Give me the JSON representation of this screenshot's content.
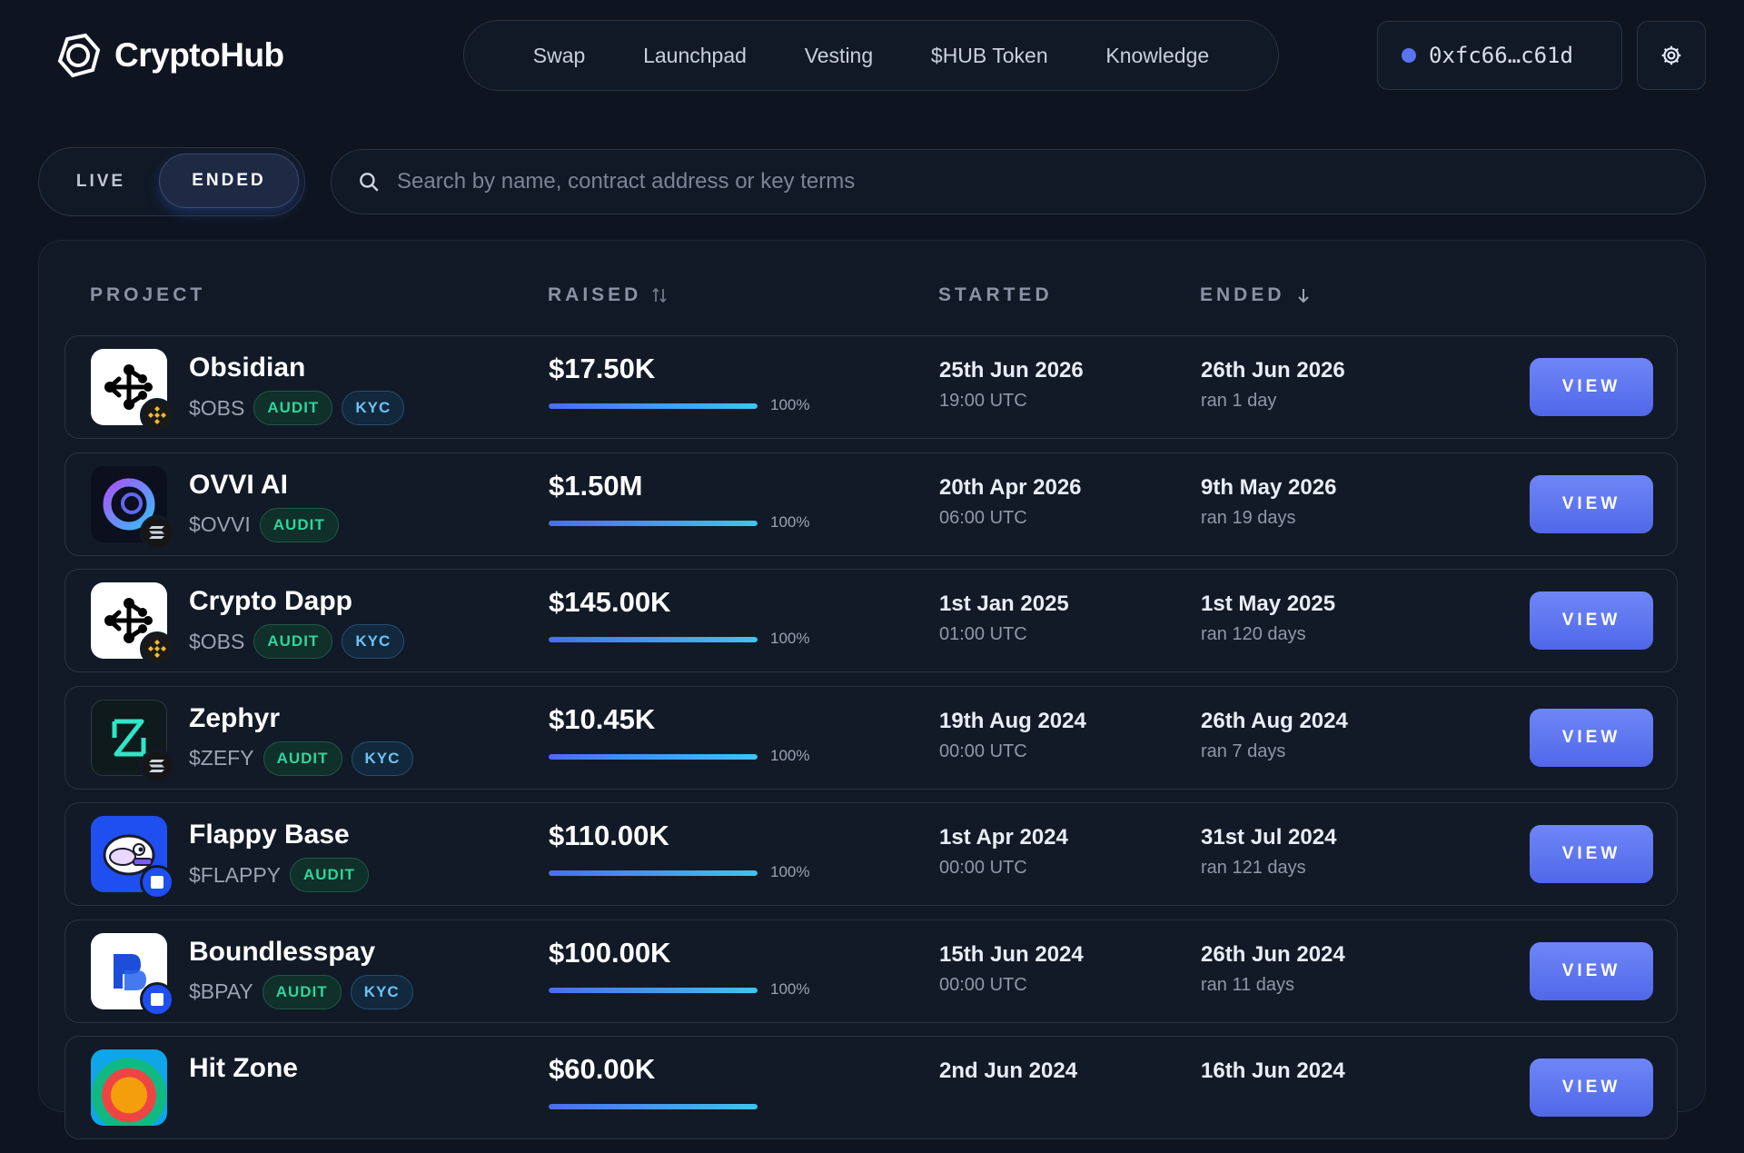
{
  "brand": {
    "name": "CryptoHub"
  },
  "nav": {
    "items": [
      "Swap",
      "Launchpad",
      "Vesting",
      "$HUB Token",
      "Knowledge"
    ]
  },
  "wallet": {
    "address": "0xfc66…c61d",
    "status_color": "#5a74f0"
  },
  "filter": {
    "live_label": "LIVE",
    "ended_label": "ENDED",
    "active": "ENDED"
  },
  "search": {
    "placeholder": "Search by name, contract address or key terms",
    "value": ""
  },
  "table": {
    "headers": {
      "project": "PROJECT",
      "raised": "RAISED",
      "started": "STARTED",
      "ended": "ENDED"
    },
    "view_label": "VIEW",
    "rows": [
      {
        "name": "Obsidian",
        "ticker": "$OBS",
        "badges": [
          "AUDIT",
          "KYC"
        ],
        "chain": "bnb",
        "logo": "obsidian",
        "raised": "$17.50K",
        "progress_pct": "100%",
        "progress": 1.0,
        "started_date": "25th Jun 2026",
        "started_time": "19:00 UTC",
        "ended_date": "26th Jun 2026",
        "ended_duration": "ran 1 day"
      },
      {
        "name": "OVVI AI",
        "ticker": "$OVVI",
        "badges": [
          "AUDIT"
        ],
        "chain": "solana",
        "logo": "ovvi",
        "raised": "$1.50M",
        "progress_pct": "100%",
        "progress": 1.0,
        "started_date": "20th Apr 2026",
        "started_time": "06:00 UTC",
        "ended_date": "9th May 2026",
        "ended_duration": "ran 19 days"
      },
      {
        "name": "Crypto Dapp",
        "ticker": "$OBS",
        "badges": [
          "AUDIT",
          "KYC"
        ],
        "chain": "bnb",
        "logo": "obsidian",
        "raised": "$145.00K",
        "progress_pct": "100%",
        "progress": 1.0,
        "started_date": "1st Jan 2025",
        "started_time": "01:00 UTC",
        "ended_date": "1st May 2025",
        "ended_duration": "ran 120 days"
      },
      {
        "name": "Zephyr",
        "ticker": "$ZEFY",
        "badges": [
          "AUDIT",
          "KYC"
        ],
        "chain": "solana",
        "logo": "zephyr",
        "raised": "$10.45K",
        "progress_pct": "100%",
        "progress": 1.0,
        "started_date": "19th Aug 2024",
        "started_time": "00:00 UTC",
        "ended_date": "26th Aug 2024",
        "ended_duration": "ran 7 days"
      },
      {
        "name": "Flappy Base",
        "ticker": "$FLAPPY",
        "badges": [
          "AUDIT"
        ],
        "chain": "base",
        "logo": "flappy",
        "raised": "$110.00K",
        "progress_pct": "100%",
        "progress": 1.0,
        "started_date": "1st Apr 2024",
        "started_time": "00:00 UTC",
        "ended_date": "31st Jul 2024",
        "ended_duration": "ran 121 days"
      },
      {
        "name": "Boundlesspay",
        "ticker": "$BPAY",
        "badges": [
          "AUDIT",
          "KYC"
        ],
        "chain": "base",
        "logo": "bpay",
        "raised": "$100.00K",
        "progress_pct": "100%",
        "progress": 1.0,
        "started_date": "15th Jun 2024",
        "started_time": "00:00 UTC",
        "ended_date": "26th Jun 2024",
        "ended_duration": "ran 11 days"
      },
      {
        "name": "Hit Zone",
        "ticker": "",
        "badges": [],
        "chain": "",
        "logo": "hitzone",
        "raised": "$60.00K",
        "progress_pct": "",
        "progress": 1.0,
        "started_date": "2nd Jun 2024",
        "started_time": "",
        "ended_date": "16th Jun 2024",
        "ended_duration": ""
      }
    ]
  },
  "colors": {
    "accent": "#5a74f0",
    "audit": "#2fd59a",
    "kyc": "#6dc3f2",
    "background": "#0f1520"
  }
}
